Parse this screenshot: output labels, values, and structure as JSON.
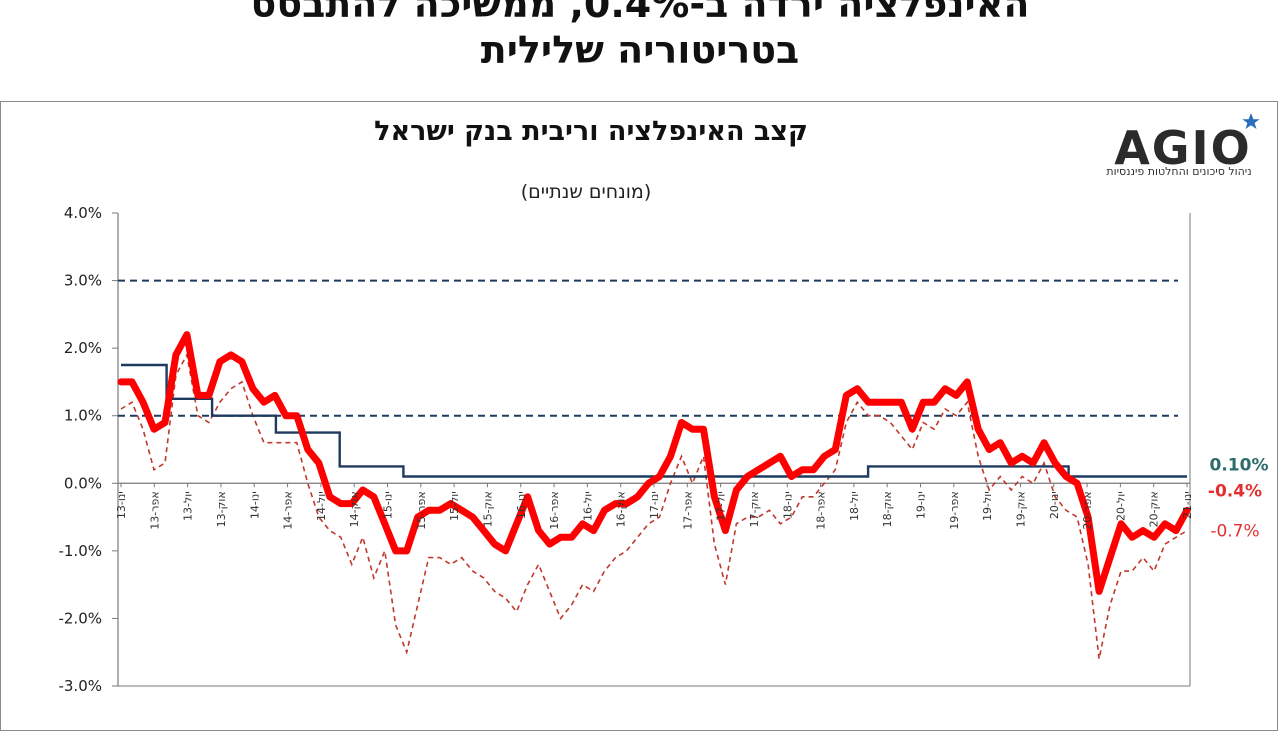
{
  "headline": {
    "line1": "האינפלציה ירדה ב-0.4%, ממשיכה להתבסס",
    "line2": "בטריטוריה שלילית"
  },
  "logo": {
    "name": "AGIO",
    "tagline": "ניהול סיכונים והחלטות פיננסיות",
    "accent_color": "#2a6ebb"
  },
  "colors": {
    "inflation": "#ff0000",
    "inflation_dashed": "#c0392b",
    "rate": "#1f3a5f",
    "band": "#1f3a5f",
    "rate_label": "#2e6b6b",
    "neg_label": "#e23030"
  },
  "chart_data": {
    "type": "line",
    "title": "קצב האינפלציה וריבית בנק ישראל",
    "subtitle": "(מונחים שנתיים)",
    "ylim": [
      -3,
      4
    ],
    "yticks": [
      -3,
      -2,
      -1,
      0,
      1,
      2,
      3,
      4
    ],
    "ytick_labels": [
      "-3.0%",
      "-2.0%",
      "-1.0%",
      "0.0%",
      "1.0%",
      "2.0%",
      "3.0%",
      "4.0%"
    ],
    "grid": false,
    "reference_lines": [
      3,
      1
    ],
    "x_tick_labels": [
      "ינו-13",
      "אפר-13",
      "יול-13",
      "אוק-13",
      "ינו-14",
      "אפר-14",
      "יול-14",
      "אוק-14",
      "ינו-15",
      "אפר-15",
      "יול-15",
      "אוק-15",
      "ינו-16",
      "אפר-16",
      "יול-16",
      "אוק-16",
      "ינו-17",
      "אפר-17",
      "יול-17",
      "אוק-17",
      "ינו-18",
      "אפר-18",
      "יול-18",
      "אוק-18",
      "ינו-19",
      "אפר-19",
      "יול-19",
      "אוק-19",
      "ינו-20",
      "אפר-20",
      "יול-20",
      "אוק-20",
      "ינו-21"
    ],
    "series": [
      {
        "name": "inflation_thick",
        "values": [
          1.5,
          1.5,
          1.2,
          0.8,
          0.9,
          1.9,
          2.2,
          1.3,
          1.3,
          1.8,
          1.9,
          1.8,
          1.4,
          1.2,
          1.3,
          1.0,
          1.0,
          0.5,
          0.3,
          -0.2,
          -0.3,
          -0.3,
          -0.1,
          -0.2,
          -0.6,
          -1.0,
          -1.0,
          -0.5,
          -0.4,
          -0.4,
          -0.3,
          -0.4,
          -0.5,
          -0.7,
          -0.9,
          -1.0,
          -0.6,
          -0.2,
          -0.7,
          -0.9,
          -0.8,
          -0.8,
          -0.6,
          -0.7,
          -0.4,
          -0.3,
          -0.3,
          -0.2,
          0.0,
          0.1,
          0.4,
          0.9,
          0.8,
          0.8,
          -0.2,
          -0.7,
          -0.1,
          0.1,
          0.2,
          0.3,
          0.4,
          0.1,
          0.2,
          0.2,
          0.4,
          0.5,
          1.3,
          1.4,
          1.2,
          1.2,
          1.2,
          1.2,
          0.8,
          1.2,
          1.2,
          1.4,
          1.3,
          1.5,
          0.8,
          0.5,
          0.6,
          0.3,
          0.4,
          0.3,
          0.6,
          0.3,
          0.1,
          0.0,
          -0.5,
          -1.6,
          -1.1,
          -0.6,
          -0.8,
          -0.7,
          -0.8,
          -0.6,
          -0.7,
          -0.4
        ]
      },
      {
        "name": "inflation_dashed",
        "values": [
          1.1,
          1.2,
          0.8,
          0.2,
          0.3,
          1.6,
          1.9,
          1.0,
          0.9,
          1.2,
          1.4,
          1.5,
          1.0,
          0.6,
          0.6,
          0.6,
          0.6,
          0.0,
          -0.5,
          -0.7,
          -0.8,
          -1.2,
          -0.8,
          -1.4,
          -1.0,
          -2.1,
          -2.5,
          -1.8,
          -1.1,
          -1.1,
          -1.2,
          -1.1,
          -1.3,
          -1.4,
          -1.6,
          -1.7,
          -1.9,
          -1.5,
          -1.2,
          -1.6,
          -2.0,
          -1.8,
          -1.5,
          -1.6,
          -1.3,
          -1.1,
          -1.0,
          -0.8,
          -0.6,
          -0.5,
          0.0,
          0.4,
          0.0,
          0.4,
          -0.9,
          -1.5,
          -0.6,
          -0.5,
          -0.5,
          -0.4,
          -0.6,
          -0.5,
          -0.2,
          -0.2,
          0.0,
          0.2,
          0.9,
          1.2,
          1.0,
          1.0,
          0.9,
          0.7,
          0.5,
          0.9,
          0.8,
          1.1,
          1.0,
          1.2,
          0.4,
          -0.1,
          0.1,
          -0.1,
          0.1,
          0.0,
          0.3,
          -0.2,
          -0.4,
          -0.5,
          -1.2,
          -2.6,
          -1.8,
          -1.3,
          -1.3,
          -1.1,
          -1.3,
          -0.9,
          -0.8,
          -0.7
        ]
      },
      {
        "name": "boi_rate",
        "steps": [
          [
            0,
            1.75
          ],
          [
            5,
            1.25
          ],
          [
            10,
            1.0
          ],
          [
            17,
            0.75
          ],
          [
            24,
            0.25
          ],
          [
            31,
            0.1
          ],
          [
            82,
            0.25
          ],
          [
            104,
            0.1
          ],
          [
            117,
            0.1
          ]
        ]
      }
    ],
    "annotations": [
      {
        "text": "0.10%",
        "value": 0.1,
        "series": "boi_rate"
      },
      {
        "text": "-0.4%",
        "value": -0.4,
        "series": "inflation_thick"
      },
      {
        "text": "-0.7%",
        "value": -0.7,
        "series": "inflation_dashed"
      }
    ]
  }
}
